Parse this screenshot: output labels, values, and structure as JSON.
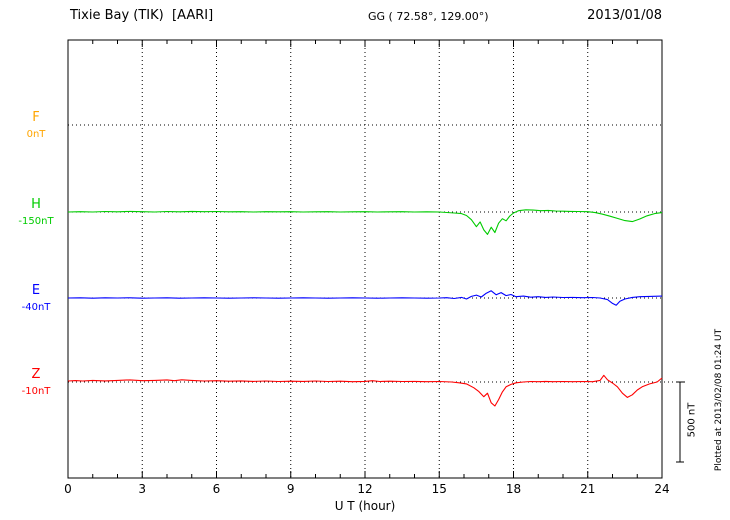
{
  "header": {
    "station": "Tixie Bay (TIK)  [AARI]",
    "coords": "GG ( 72.58°, 129.00°)",
    "date": "2013/01/08"
  },
  "side": {
    "plotted_at": "Plotted at 2013/02/08 01:24 UT",
    "scale_label": "500 nT"
  },
  "chart_data": {
    "type": "line",
    "title": "Tixie Bay (TIK) [AARI] magnetogram 2013/01/08",
    "xlabel": "U T (hour)",
    "ylabel": "",
    "x_range": [
      0,
      24
    ],
    "x_ticks": [
      0,
      3,
      6,
      9,
      12,
      15,
      18,
      21,
      24
    ],
    "grid": "dotted",
    "legend": "left-margin component labels",
    "scale_bar": {
      "label": "500 nT",
      "nT": 500
    },
    "components": [
      {
        "name": "F",
        "baseline_label": "0nT",
        "color": "#FFA500",
        "points": []
      },
      {
        "name": "H",
        "baseline_label": "-150nT",
        "color": "#00CC00",
        "points": [
          [
            0,
            0
          ],
          [
            0.5,
            2
          ],
          [
            1,
            0
          ],
          [
            1.5,
            3
          ],
          [
            2,
            1
          ],
          [
            2.5,
            4
          ],
          [
            3,
            2
          ],
          [
            3.5,
            0
          ],
          [
            4,
            3
          ],
          [
            4.5,
            1
          ],
          [
            5,
            4
          ],
          [
            5.5,
            2
          ],
          [
            6,
            3
          ],
          [
            6.5,
            1
          ],
          [
            7,
            2
          ],
          [
            7.5,
            0
          ],
          [
            8,
            2
          ],
          [
            8.5,
            1
          ],
          [
            9,
            2
          ],
          [
            9.5,
            0
          ],
          [
            10,
            1
          ],
          [
            10.5,
            2
          ],
          [
            11,
            0
          ],
          [
            11.5,
            1
          ],
          [
            12,
            2
          ],
          [
            12.5,
            0
          ],
          [
            13,
            1
          ],
          [
            13.5,
            2
          ],
          [
            14,
            0
          ],
          [
            14.5,
            1
          ],
          [
            15,
            0
          ],
          [
            15.3,
            -3
          ],
          [
            15.6,
            -6
          ],
          [
            15.9,
            -10
          ],
          [
            16.1,
            -22
          ],
          [
            16.3,
            -48
          ],
          [
            16.5,
            -92
          ],
          [
            16.65,
            -62
          ],
          [
            16.8,
            -112
          ],
          [
            16.95,
            -140
          ],
          [
            17.1,
            -95
          ],
          [
            17.25,
            -128
          ],
          [
            17.4,
            -70
          ],
          [
            17.55,
            -42
          ],
          [
            17.7,
            -55
          ],
          [
            17.85,
            -25
          ],
          [
            18,
            -6
          ],
          [
            18.2,
            8
          ],
          [
            18.5,
            14
          ],
          [
            18.8,
            12
          ],
          [
            19.1,
            8
          ],
          [
            19.4,
            10
          ],
          [
            19.7,
            6
          ],
          [
            20,
            5
          ],
          [
            20.3,
            4
          ],
          [
            20.6,
            3
          ],
          [
            21,
            2
          ],
          [
            21.3,
            -4
          ],
          [
            21.6,
            -14
          ],
          [
            21.9,
            -26
          ],
          [
            22.2,
            -40
          ],
          [
            22.5,
            -54
          ],
          [
            22.8,
            -60
          ],
          [
            23.1,
            -44
          ],
          [
            23.4,
            -24
          ],
          [
            23.7,
            -10
          ],
          [
            24,
            -4
          ]
        ]
      },
      {
        "name": "E",
        "baseline_label": "-40nT",
        "color": "#0000FF",
        "points": [
          [
            0,
            0
          ],
          [
            0.5,
            1
          ],
          [
            1,
            -1
          ],
          [
            1.5,
            1
          ],
          [
            2,
            0
          ],
          [
            2.5,
            1
          ],
          [
            3,
            -1
          ],
          [
            3.5,
            0
          ],
          [
            4,
            1
          ],
          [
            4.5,
            -1
          ],
          [
            5,
            0
          ],
          [
            5.5,
            1
          ],
          [
            6,
            0
          ],
          [
            6.5,
            -1
          ],
          [
            7,
            0
          ],
          [
            7.5,
            1
          ],
          [
            8,
            0
          ],
          [
            8.5,
            -1
          ],
          [
            9,
            0
          ],
          [
            9.5,
            1
          ],
          [
            10,
            0
          ],
          [
            10.5,
            -1
          ],
          [
            11,
            0
          ],
          [
            11.5,
            1
          ],
          [
            12,
            0
          ],
          [
            12.5,
            -1
          ],
          [
            13,
            0
          ],
          [
            13.5,
            1
          ],
          [
            14,
            0
          ],
          [
            14.5,
            -1
          ],
          [
            15,
            0
          ],
          [
            15.3,
            2
          ],
          [
            15.6,
            -3
          ],
          [
            15.9,
            4
          ],
          [
            16.1,
            -6
          ],
          [
            16.3,
            10
          ],
          [
            16.5,
            18
          ],
          [
            16.7,
            6
          ],
          [
            16.9,
            30
          ],
          [
            17.1,
            45
          ],
          [
            17.3,
            20
          ],
          [
            17.5,
            34
          ],
          [
            17.7,
            15
          ],
          [
            17.9,
            22
          ],
          [
            18.1,
            8
          ],
          [
            18.4,
            12
          ],
          [
            18.7,
            5
          ],
          [
            19,
            8
          ],
          [
            19.3,
            4
          ],
          [
            19.6,
            6
          ],
          [
            20,
            3
          ],
          [
            20.4,
            4
          ],
          [
            20.8,
            2
          ],
          [
            21.2,
            3
          ],
          [
            21.5,
            0
          ],
          [
            21.8,
            -10
          ],
          [
            22,
            -34
          ],
          [
            22.15,
            -45
          ],
          [
            22.3,
            -20
          ],
          [
            22.5,
            -6
          ],
          [
            22.8,
            4
          ],
          [
            23.1,
            8
          ],
          [
            23.5,
            10
          ],
          [
            24,
            12
          ]
        ]
      },
      {
        "name": "Z",
        "baseline_label": "-10nT",
        "color": "#FF0000",
        "points": [
          [
            0,
            6
          ],
          [
            0.3,
            9
          ],
          [
            0.6,
            6
          ],
          [
            1,
            10
          ],
          [
            1.5,
            7
          ],
          [
            2,
            10
          ],
          [
            2.5,
            13
          ],
          [
            3,
            8
          ],
          [
            3.5,
            10
          ],
          [
            4,
            13
          ],
          [
            4.3,
            8
          ],
          [
            4.6,
            14
          ],
          [
            5,
            10
          ],
          [
            5.5,
            6
          ],
          [
            6,
            8
          ],
          [
            6.5,
            5
          ],
          [
            7,
            7
          ],
          [
            7.5,
            4
          ],
          [
            8,
            6
          ],
          [
            8.5,
            3
          ],
          [
            9,
            5
          ],
          [
            9.5,
            4
          ],
          [
            10,
            6
          ],
          [
            10.5,
            3
          ],
          [
            11,
            5
          ],
          [
            11.5,
            2
          ],
          [
            12,
            4
          ],
          [
            12.3,
            8
          ],
          [
            12.6,
            3
          ],
          [
            13,
            5
          ],
          [
            13.5,
            3
          ],
          [
            14,
            4
          ],
          [
            14.5,
            2
          ],
          [
            15,
            3
          ],
          [
            15.5,
            0
          ],
          [
            15.8,
            -5
          ],
          [
            16.1,
            -12
          ],
          [
            16.4,
            -36
          ],
          [
            16.6,
            -60
          ],
          [
            16.8,
            -92
          ],
          [
            16.95,
            -70
          ],
          [
            17.1,
            -130
          ],
          [
            17.25,
            -150
          ],
          [
            17.4,
            -110
          ],
          [
            17.55,
            -62
          ],
          [
            17.7,
            -30
          ],
          [
            17.9,
            -15
          ],
          [
            18.1,
            -5
          ],
          [
            18.4,
            0
          ],
          [
            18.7,
            3
          ],
          [
            19,
            2
          ],
          [
            19.3,
            4
          ],
          [
            19.6,
            2
          ],
          [
            20,
            3
          ],
          [
            20.4,
            2
          ],
          [
            20.8,
            3
          ],
          [
            21.2,
            2
          ],
          [
            21.5,
            10
          ],
          [
            21.65,
            42
          ],
          [
            21.8,
            14
          ],
          [
            22,
            -6
          ],
          [
            22.2,
            -30
          ],
          [
            22.4,
            -70
          ],
          [
            22.6,
            -96
          ],
          [
            22.8,
            -80
          ],
          [
            23,
            -50
          ],
          [
            23.2,
            -30
          ],
          [
            23.5,
            -12
          ],
          [
            23.8,
            0
          ],
          [
            24,
            25
          ]
        ]
      }
    ]
  }
}
